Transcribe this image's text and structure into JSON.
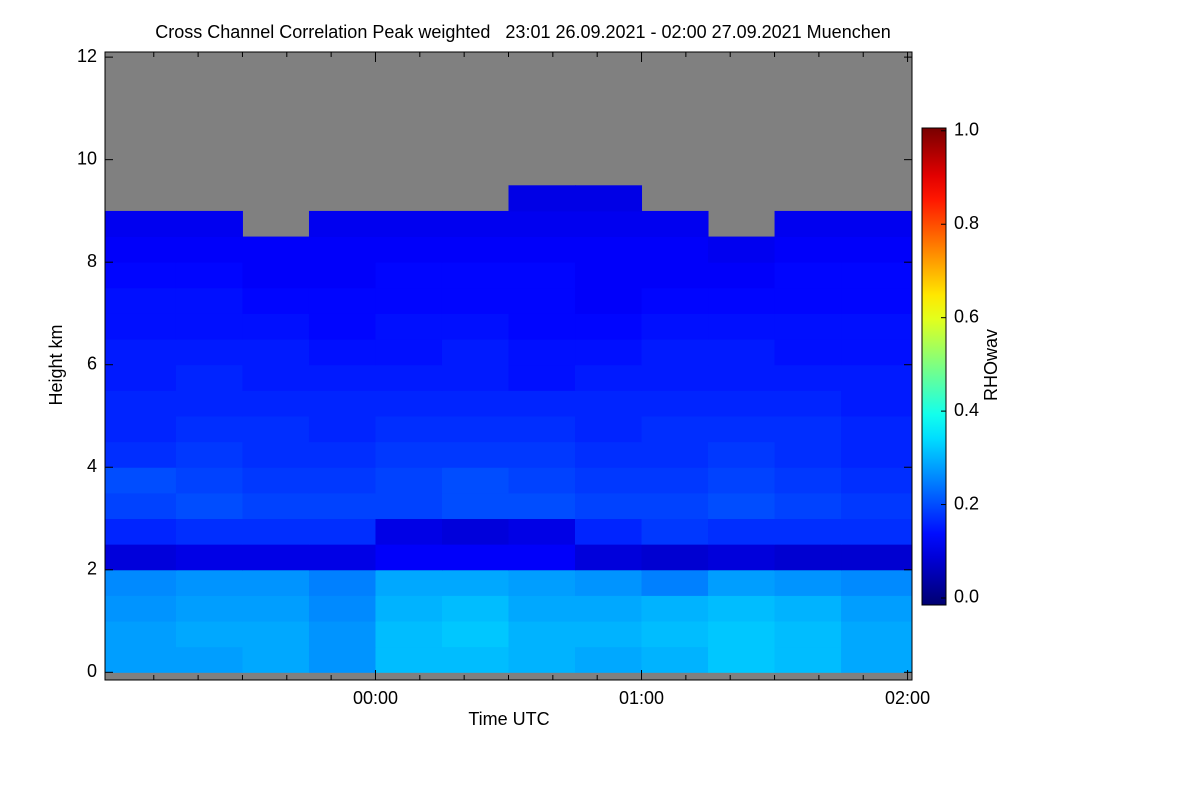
{
  "chart_data": {
    "type": "heatmap",
    "title": "Cross Channel Correlation Peak weighted   23:01 26.09.2021 - 02:00 27.09.2021 Muenchen",
    "xlabel": "Time UTC",
    "ylabel": "Height km",
    "colorbar_label": "RHOwav",
    "colormap": "jet",
    "nodata_color": "#808080",
    "xlim": [
      -61,
      121
    ],
    "xticks": [
      {
        "value": 0,
        "label": "00:00"
      },
      {
        "value": 60,
        "label": "01:00"
      },
      {
        "value": 120,
        "label": "02:00"
      }
    ],
    "xminorticks": [
      -50,
      -40,
      -30,
      -20,
      -10,
      10,
      20,
      30,
      40,
      50,
      70,
      80,
      90,
      100,
      110
    ],
    "ylim": [
      -0.15,
      12.1
    ],
    "yticks": [
      0,
      2,
      4,
      6,
      8,
      10,
      12
    ],
    "clim": [
      -0.015,
      1.006
    ],
    "cticks": [
      {
        "value": 0,
        "label": "0.0"
      },
      {
        "value": 0.2,
        "label": "0.2"
      },
      {
        "value": 0.4,
        "label": "0.4"
      },
      {
        "value": 0.6,
        "label": "0.6"
      },
      {
        "value": 0.8,
        "label": "0.8"
      },
      {
        "value": 1,
        "label": "1.0"
      }
    ],
    "x_edges": [
      -61,
      -45,
      -30,
      -15,
      0,
      15,
      30,
      45,
      60,
      75,
      90,
      105,
      121
    ],
    "y_edges": [
      0,
      0.5,
      1,
      1.5,
      2,
      2.5,
      3,
      3.5,
      4,
      4.5,
      5,
      5.5,
      6,
      6.5,
      7,
      7.5,
      8,
      8.5,
      9,
      9.5
    ],
    "z": [
      [
        0.28,
        0.28,
        0.29,
        0.27,
        0.31,
        0.31,
        0.3,
        0.29,
        0.3,
        0.32,
        0.31,
        0.29
      ],
      [
        0.28,
        0.29,
        0.29,
        0.27,
        0.31,
        0.32,
        0.3,
        0.3,
        0.31,
        0.32,
        0.31,
        0.29
      ],
      [
        0.27,
        0.28,
        0.28,
        0.26,
        0.3,
        0.31,
        0.29,
        0.29,
        0.3,
        0.31,
        0.3,
        0.28
      ],
      [
        0.26,
        0.27,
        0.27,
        0.25,
        0.29,
        0.29,
        0.28,
        0.27,
        0.25,
        0.28,
        0.27,
        0.26
      ],
      [
        0.09,
        0.1,
        0.1,
        0.1,
        0.12,
        0.12,
        0.12,
        0.09,
        0.08,
        0.09,
        0.08,
        0.08
      ],
      [
        0.16,
        0.17,
        0.17,
        0.17,
        0.1,
        0.09,
        0.1,
        0.16,
        0.18,
        0.17,
        0.17,
        0.17
      ],
      [
        0.19,
        0.2,
        0.19,
        0.19,
        0.19,
        0.2,
        0.2,
        0.19,
        0.19,
        0.2,
        0.19,
        0.18
      ],
      [
        0.2,
        0.19,
        0.18,
        0.18,
        0.19,
        0.2,
        0.19,
        0.18,
        0.18,
        0.19,
        0.18,
        0.17
      ],
      [
        0.17,
        0.18,
        0.17,
        0.17,
        0.18,
        0.18,
        0.18,
        0.17,
        0.17,
        0.18,
        0.17,
        0.16
      ],
      [
        0.16,
        0.17,
        0.17,
        0.16,
        0.17,
        0.17,
        0.17,
        0.16,
        0.17,
        0.17,
        0.17,
        0.16
      ],
      [
        0.16,
        0.16,
        0.16,
        0.16,
        0.16,
        0.16,
        0.16,
        0.16,
        0.16,
        0.16,
        0.16,
        0.15
      ],
      [
        0.15,
        0.16,
        0.15,
        0.15,
        0.15,
        0.15,
        0.14,
        0.15,
        0.15,
        0.15,
        0.15,
        0.15
      ],
      [
        0.15,
        0.15,
        0.15,
        0.14,
        0.14,
        0.15,
        0.14,
        0.14,
        0.15,
        0.15,
        0.14,
        0.14
      ],
      [
        0.14,
        0.14,
        0.14,
        0.13,
        0.14,
        0.14,
        0.13,
        0.13,
        0.14,
        0.14,
        0.14,
        0.14
      ],
      [
        0.14,
        0.14,
        0.13,
        0.13,
        0.13,
        0.13,
        0.13,
        0.12,
        0.13,
        0.13,
        0.13,
        0.13
      ],
      [
        0.13,
        0.13,
        0.12,
        0.12,
        0.13,
        0.13,
        0.13,
        0.12,
        0.12,
        0.12,
        0.13,
        0.13
      ],
      [
        0.12,
        0.12,
        0.12,
        0.12,
        0.12,
        0.12,
        0.12,
        0.12,
        0.12,
        0.11,
        0.12,
        0.12
      ],
      [
        0.11,
        0.11,
        null,
        0.11,
        0.11,
        0.11,
        0.11,
        0.11,
        0.11,
        null,
        0.11,
        0.11
      ],
      [
        null,
        null,
        null,
        null,
        null,
        null,
        0.1,
        0.1,
        null,
        null,
        null,
        null
      ]
    ]
  }
}
